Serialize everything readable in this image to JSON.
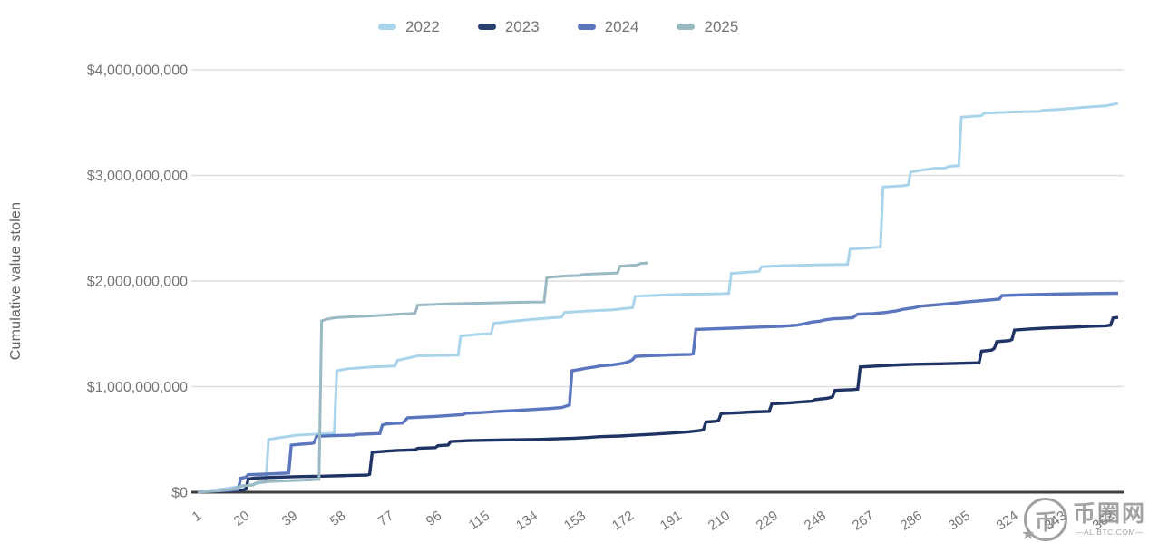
{
  "legend": {
    "items": [
      {
        "label": "2022",
        "color": "#aad4ec"
      },
      {
        "label": "2023",
        "color": "#27406f"
      },
      {
        "label": "2024",
        "color": "#5b76bd"
      },
      {
        "label": "2025",
        "color": "#9ab9c2"
      }
    ]
  },
  "watermark": {
    "logo_char": "币",
    "name": "币圈网",
    "site": "—ALIBTC.COM—"
  },
  "chart_data": {
    "type": "line",
    "subtype": "cumulative-step",
    "title": "",
    "xlabel": "",
    "ylabel": "Cumulative value stolen",
    "values_unit": "USD millions",
    "ylim_usd": [
      0,
      4000000000
    ],
    "xlim_days": [
      1,
      365
    ],
    "grid": "horizontal",
    "legend_position": "top-center",
    "y_ticks": [
      {
        "label": "$0",
        "value_musd": 0
      },
      {
        "label": "$1,000,000,000",
        "value_musd": 1000
      },
      {
        "label": "$2,000,000,000",
        "value_musd": 2000
      },
      {
        "label": "$3,000,000,000",
        "value_musd": 3000
      },
      {
        "label": "$4,000,000,000",
        "value_musd": 4000
      }
    ],
    "x_ticks": [
      1,
      20,
      39,
      58,
      77,
      96,
      115,
      134,
      153,
      172,
      191,
      210,
      229,
      248,
      267,
      286,
      305,
      324,
      343,
      362
    ],
    "series": [
      {
        "name": "2022",
        "color": "#aad4ec",
        "stroke_width": 3,
        "points": [
          [
            1,
            5
          ],
          [
            8,
            20
          ],
          [
            15,
            45
          ],
          [
            20,
            60
          ],
          [
            26,
            90
          ],
          [
            28,
            95
          ],
          [
            29,
            500
          ],
          [
            33,
            515
          ],
          [
            40,
            540
          ],
          [
            48,
            550
          ],
          [
            55,
            558
          ],
          [
            56,
            1150
          ],
          [
            60,
            1168
          ],
          [
            70,
            1186
          ],
          [
            79,
            1195
          ],
          [
            80,
            1248
          ],
          [
            88,
            1292
          ],
          [
            104,
            1298
          ],
          [
            105,
            1480
          ],
          [
            112,
            1495
          ],
          [
            117,
            1502
          ],
          [
            118,
            1600
          ],
          [
            125,
            1618
          ],
          [
            135,
            1640
          ],
          [
            145,
            1658
          ],
          [
            146,
            1702
          ],
          [
            155,
            1716
          ],
          [
            165,
            1728
          ],
          [
            173,
            1748
          ],
          [
            174,
            1855
          ],
          [
            185,
            1868
          ],
          [
            195,
            1875
          ],
          [
            205,
            1878
          ],
          [
            211,
            1882
          ],
          [
            212,
            2072
          ],
          [
            220,
            2086
          ],
          [
            223,
            2092
          ],
          [
            224,
            2136
          ],
          [
            233,
            2146
          ],
          [
            245,
            2152
          ],
          [
            258,
            2158
          ],
          [
            259,
            2302
          ],
          [
            265,
            2312
          ],
          [
            271,
            2322
          ],
          [
            272,
            2890
          ],
          [
            280,
            2902
          ],
          [
            282,
            2912
          ],
          [
            283,
            3032
          ],
          [
            288,
            3052
          ],
          [
            292,
            3066
          ],
          [
            297,
            3072
          ],
          [
            298,
            3086
          ],
          [
            302,
            3092
          ],
          [
            303,
            3552
          ],
          [
            308,
            3560
          ],
          [
            311,
            3566
          ],
          [
            312,
            3590
          ],
          [
            318,
            3596
          ],
          [
            325,
            3602
          ],
          [
            334,
            3606
          ],
          [
            335,
            3616
          ],
          [
            342,
            3626
          ],
          [
            350,
            3642
          ],
          [
            356,
            3652
          ],
          [
            360,
            3658
          ],
          [
            365,
            3682
          ]
        ]
      },
      {
        "name": "2023",
        "color": "#1f3464",
        "stroke_width": 3.4,
        "points": [
          [
            1,
            2
          ],
          [
            8,
            8
          ],
          [
            14,
            15
          ],
          [
            19,
            22
          ],
          [
            20,
            30
          ],
          [
            21,
            125
          ],
          [
            24,
            135
          ],
          [
            30,
            140
          ],
          [
            40,
            148
          ],
          [
            50,
            152
          ],
          [
            60,
            158
          ],
          [
            68,
            162
          ],
          [
            69,
            170
          ],
          [
            70,
            378
          ],
          [
            75,
            388
          ],
          [
            80,
            396
          ],
          [
            87,
            402
          ],
          [
            88,
            416
          ],
          [
            95,
            422
          ],
          [
            96,
            440
          ],
          [
            100,
            446
          ],
          [
            101,
            480
          ],
          [
            108,
            488
          ],
          [
            115,
            492
          ],
          [
            125,
            496
          ],
          [
            135,
            500
          ],
          [
            143,
            506
          ],
          [
            150,
            512
          ],
          [
            155,
            518
          ],
          [
            160,
            526
          ],
          [
            168,
            532
          ],
          [
            174,
            540
          ],
          [
            180,
            548
          ],
          [
            188,
            560
          ],
          [
            195,
            572
          ],
          [
            200,
            585
          ],
          [
            201,
            592
          ],
          [
            202,
            665
          ],
          [
            206,
            672
          ],
          [
            207,
            680
          ],
          [
            208,
            745
          ],
          [
            214,
            752
          ],
          [
            220,
            760
          ],
          [
            227,
            766
          ],
          [
            228,
            836
          ],
          [
            235,
            846
          ],
          [
            240,
            856
          ],
          [
            244,
            862
          ],
          [
            245,
            876
          ],
          [
            250,
            890
          ],
          [
            252,
            902
          ],
          [
            253,
            965
          ],
          [
            260,
            972
          ],
          [
            262,
            976
          ],
          [
            263,
            1186
          ],
          [
            270,
            1196
          ],
          [
            278,
            1206
          ],
          [
            285,
            1212
          ],
          [
            295,
            1216
          ],
          [
            305,
            1222
          ],
          [
            310,
            1226
          ],
          [
            311,
            1336
          ],
          [
            315,
            1346
          ],
          [
            316,
            1362
          ],
          [
            317,
            1426
          ],
          [
            322,
            1436
          ],
          [
            323,
            1446
          ],
          [
            324,
            1536
          ],
          [
            330,
            1546
          ],
          [
            338,
            1556
          ],
          [
            346,
            1562
          ],
          [
            354,
            1572
          ],
          [
            360,
            1576
          ],
          [
            362,
            1582
          ],
          [
            363,
            1650
          ],
          [
            365,
            1656
          ]
        ]
      },
      {
        "name": "2024",
        "color": "#5b76bd",
        "stroke_width": 3.4,
        "points": [
          [
            1,
            3
          ],
          [
            8,
            12
          ],
          [
            14,
            20
          ],
          [
            17,
            25
          ],
          [
            18,
            132
          ],
          [
            20,
            142
          ],
          [
            21,
            166
          ],
          [
            28,
            172
          ],
          [
            33,
            178
          ],
          [
            37,
            182
          ],
          [
            38,
            446
          ],
          [
            42,
            456
          ],
          [
            46,
            462
          ],
          [
            47,
            468
          ],
          [
            48,
            530
          ],
          [
            55,
            536
          ],
          [
            63,
            542
          ],
          [
            64,
            548
          ],
          [
            73,
            556
          ],
          [
            74,
            636
          ],
          [
            76,
            648
          ],
          [
            82,
            656
          ],
          [
            83,
            678
          ],
          [
            84,
            705
          ],
          [
            90,
            712
          ],
          [
            95,
            718
          ],
          [
            100,
            726
          ],
          [
            106,
            736
          ],
          [
            107,
            748
          ],
          [
            113,
            754
          ],
          [
            120,
            766
          ],
          [
            127,
            774
          ],
          [
            134,
            784
          ],
          [
            140,
            792
          ],
          [
            145,
            802
          ],
          [
            148,
            826
          ],
          [
            149,
            1150
          ],
          [
            152,
            1162
          ],
          [
            155,
            1176
          ],
          [
            158,
            1186
          ],
          [
            160,
            1196
          ],
          [
            165,
            1206
          ],
          [
            168,
            1216
          ],
          [
            170,
            1226
          ],
          [
            172,
            1242
          ],
          [
            173,
            1256
          ],
          [
            174,
            1286
          ],
          [
            178,
            1292
          ],
          [
            183,
            1296
          ],
          [
            190,
            1302
          ],
          [
            196,
            1306
          ],
          [
            197,
            1312
          ],
          [
            198,
            1542
          ],
          [
            205,
            1548
          ],
          [
            212,
            1554
          ],
          [
            218,
            1560
          ],
          [
            225,
            1566
          ],
          [
            232,
            1572
          ],
          [
            238,
            1582
          ],
          [
            241,
            1596
          ],
          [
            244,
            1612
          ],
          [
            247,
            1620
          ],
          [
            249,
            1632
          ],
          [
            252,
            1642
          ],
          [
            256,
            1646
          ],
          [
            260,
            1652
          ],
          [
            262,
            1686
          ],
          [
            268,
            1692
          ],
          [
            273,
            1702
          ],
          [
            277,
            1716
          ],
          [
            280,
            1732
          ],
          [
            284,
            1746
          ],
          [
            287,
            1762
          ],
          [
            290,
            1768
          ],
          [
            294,
            1776
          ],
          [
            300,
            1790
          ],
          [
            305,
            1802
          ],
          [
            310,
            1812
          ],
          [
            315,
            1822
          ],
          [
            318,
            1828
          ],
          [
            319,
            1862
          ],
          [
            325,
            1868
          ],
          [
            332,
            1872
          ],
          [
            340,
            1876
          ],
          [
            350,
            1880
          ],
          [
            365,
            1884
          ]
        ]
      },
      {
        "name": "2025",
        "color": "#9ab9c2",
        "stroke_width": 3,
        "points": [
          [
            1,
            2
          ],
          [
            6,
            8
          ],
          [
            10,
            15
          ],
          [
            14,
            25
          ],
          [
            17,
            40
          ],
          [
            18,
            58
          ],
          [
            19,
            62
          ],
          [
            23,
            68
          ],
          [
            24,
            88
          ],
          [
            25,
            95
          ],
          [
            28,
            100
          ],
          [
            32,
            104
          ],
          [
            36,
            108
          ],
          [
            40,
            112
          ],
          [
            44,
            116
          ],
          [
            48,
            120
          ],
          [
            49,
            122
          ],
          [
            50,
            1622
          ],
          [
            52,
            1638
          ],
          [
            54,
            1648
          ],
          [
            57,
            1656
          ],
          [
            62,
            1662
          ],
          [
            68,
            1668
          ],
          [
            74,
            1676
          ],
          [
            80,
            1686
          ],
          [
            86,
            1692
          ],
          [
            87,
            1696
          ],
          [
            88,
            1772
          ],
          [
            94,
            1778
          ],
          [
            100,
            1784
          ],
          [
            108,
            1788
          ],
          [
            116,
            1792
          ],
          [
            124,
            1796
          ],
          [
            132,
            1800
          ],
          [
            138,
            1802
          ],
          [
            139,
            2032
          ],
          [
            143,
            2042
          ],
          [
            147,
            2048
          ],
          [
            152,
            2052
          ],
          [
            153,
            2062
          ],
          [
            158,
            2068
          ],
          [
            163,
            2072
          ],
          [
            167,
            2076
          ],
          [
            168,
            2140
          ],
          [
            171,
            2146
          ],
          [
            174,
            2150
          ],
          [
            175,
            2152
          ],
          [
            176,
            2166
          ],
          [
            178,
            2170
          ],
          [
            179,
            2172
          ]
        ]
      }
    ]
  }
}
